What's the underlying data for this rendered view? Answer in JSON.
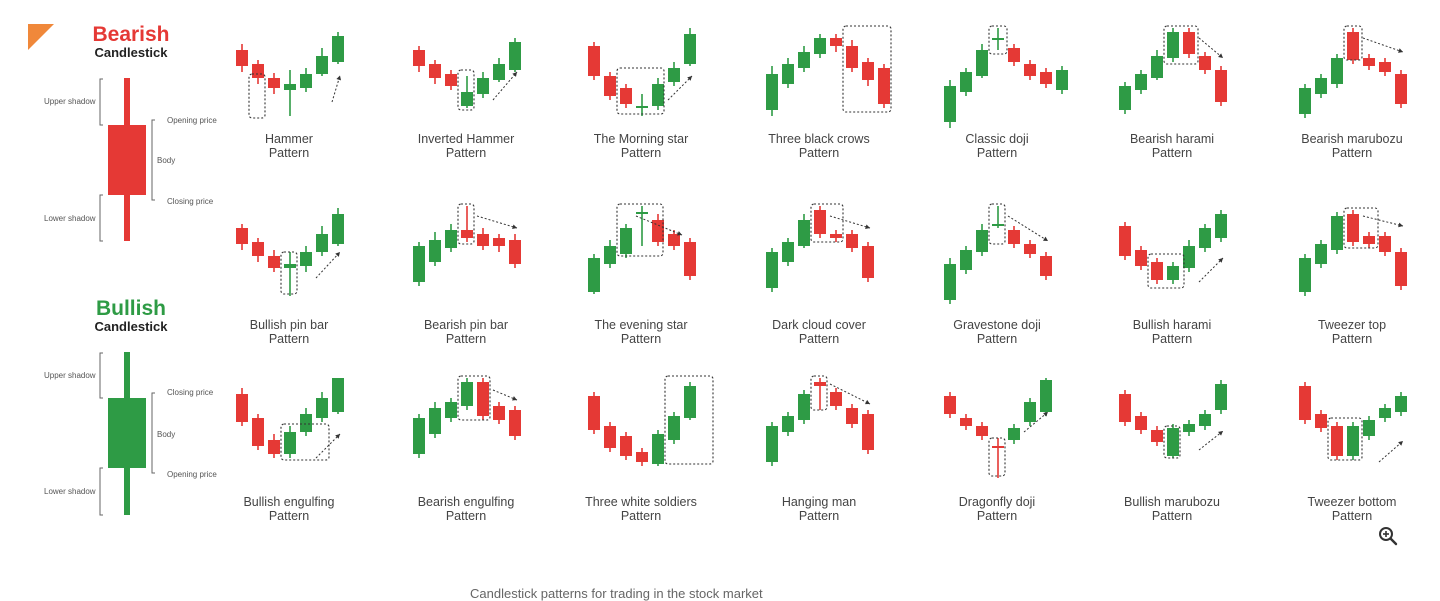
{
  "colors": {
    "bear": "#e53935",
    "bull": "#2e9b45",
    "accent": "#f0883a",
    "text": "#444444"
  },
  "anatomy": {
    "bearish": {
      "title": "Bearish",
      "subtitle": "Candlestick",
      "labels": {
        "upper_shadow": "Upper shadow",
        "opening_price": "Opening price",
        "body": "Body",
        "closing_price": "Closing price",
        "lower_shadow": "Lower shadow"
      }
    },
    "bullish": {
      "title": "Bullish",
      "subtitle": "Candlestick",
      "labels": {
        "upper_shadow": "Upper shadow",
        "closing_price": "Closing price",
        "body": "Body",
        "opening_price": "Opening price",
        "lower_shadow": "Lower shadow"
      }
    }
  },
  "patterns": [
    {
      "name": "Hammer",
      "suffix": "Pattern"
    },
    {
      "name": "Inverted Hammer",
      "suffix": "Pattern"
    },
    {
      "name": "The Morning star",
      "suffix": "Pattern"
    },
    {
      "name": "Three black crows",
      "suffix": "Pattern"
    },
    {
      "name": "Classic doji",
      "suffix": "Pattern"
    },
    {
      "name": "Bearish harami",
      "suffix": "Pattern"
    },
    {
      "name": "Bearish marubozu",
      "suffix": "Pattern"
    },
    {
      "name": "Bullish pin bar",
      "suffix": "Pattern"
    },
    {
      "name": "Bearish pin bar",
      "suffix": "Pattern"
    },
    {
      "name": "The evening star",
      "suffix": "Pattern"
    },
    {
      "name": "Dark cloud cover",
      "suffix": "Pattern"
    },
    {
      "name": "Gravestone doji",
      "suffix": "Pattern"
    },
    {
      "name": "Bullish harami",
      "suffix": "Pattern"
    },
    {
      "name": "Tweezer top",
      "suffix": "Pattern"
    },
    {
      "name": "Bullish engulfing",
      "suffix": "Pattern"
    },
    {
      "name": "Bearish engulfing",
      "suffix": "Pattern"
    },
    {
      "name": "Three white soldiers",
      "suffix": "Pattern"
    },
    {
      "name": "Hanging man",
      "suffix": "Pattern"
    },
    {
      "name": "Dragonfly doji",
      "suffix": "Pattern"
    },
    {
      "name": "Bullish marubozu",
      "suffix": "Pattern"
    },
    {
      "name": "Tweezer bottom",
      "suffix": "Pattern"
    }
  ],
  "icons": {
    "zoom": "zoom-in-icon"
  },
  "caption": "Candlestick patterns for trading in the stock market"
}
